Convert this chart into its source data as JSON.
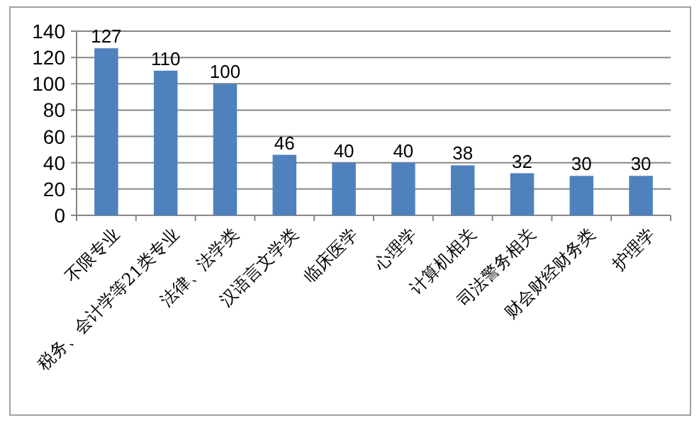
{
  "chart_data": {
    "type": "bar",
    "categories": [
      "不限专业",
      "税务、会计学等21类专业",
      "法律、法学类",
      "汉语言文学类",
      "临床医学",
      "心理学",
      "计算机相关",
      "司法警务相关",
      "财会财经财务类",
      "护理学"
    ],
    "values": [
      127,
      110,
      100,
      46,
      40,
      40,
      38,
      32,
      30,
      30
    ],
    "color": "#4f81bd",
    "ylim": [
      0,
      140
    ],
    "yticks": [
      0,
      20,
      40,
      60,
      80,
      100,
      120,
      140
    ],
    "grid": "y",
    "data_labels": true
  }
}
